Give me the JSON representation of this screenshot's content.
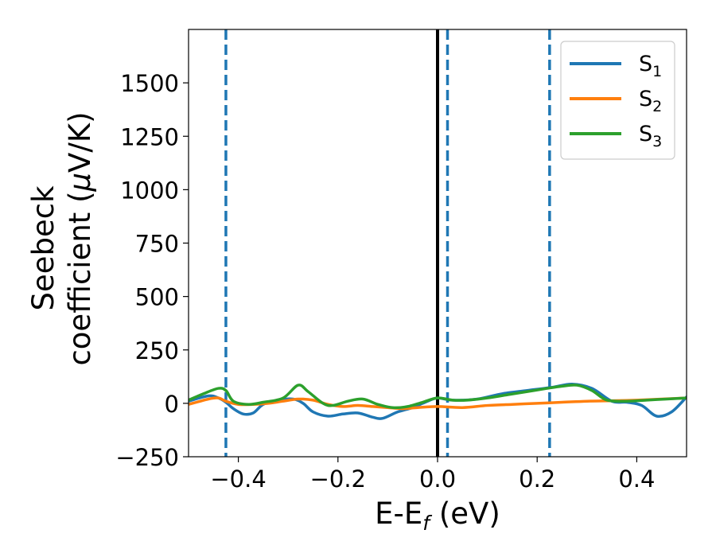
{
  "chart_data": {
    "type": "line",
    "title": "",
    "xlabel": {
      "main": "E-E",
      "sub": "f",
      "rest": " (eV)"
    },
    "ylabel": {
      "line1": "Seebeck",
      "line2_main": "coefficient  (",
      "mu": "μ",
      "line2_rest": "V/K)"
    },
    "xlim": [
      -0.5,
      0.5
    ],
    "ylim": [
      -250,
      1750
    ],
    "xticks": [
      -0.4,
      -0.2,
      0.0,
      0.2,
      0.4
    ],
    "xtick_labels": [
      "−0.4",
      "−0.2",
      "0.0",
      "0.2",
      "0.4"
    ],
    "yticks": [
      -250,
      0,
      250,
      500,
      750,
      1000,
      1250,
      1500
    ],
    "ytick_labels": [
      "−250",
      "0",
      "250",
      "500",
      "750",
      "1000",
      "1250",
      "1500"
    ],
    "grid": false,
    "legend_position": "top-right",
    "vlines": [
      {
        "x": -0.425,
        "style": "dashed",
        "color": "#1f77b4"
      },
      {
        "x": 0.0,
        "style": "solid",
        "color": "#000000"
      },
      {
        "x": 0.02,
        "style": "dashed",
        "color": "#1f77b4"
      },
      {
        "x": 0.225,
        "style": "dashed",
        "color": "#1f77b4"
      }
    ],
    "series": [
      {
        "name": "S",
        "sub": "1",
        "color": "#1f77b4",
        "x": [
          -0.5,
          -0.46,
          -0.44,
          -0.425,
          -0.41,
          -0.39,
          -0.37,
          -0.35,
          -0.32,
          -0.29,
          -0.27,
          -0.25,
          -0.22,
          -0.19,
          -0.16,
          -0.13,
          -0.11,
          -0.08,
          -0.05,
          -0.02,
          0.0,
          0.03,
          0.08,
          0.13,
          0.18,
          0.23,
          0.27,
          0.31,
          0.35,
          0.38,
          0.41,
          0.44,
          0.47,
          0.5
        ],
        "y": [
          10,
          35,
          25,
          5,
          -25,
          -50,
          -45,
          -5,
          15,
          20,
          0,
          -40,
          -60,
          -50,
          -45,
          -65,
          -70,
          -40,
          -20,
          10,
          25,
          15,
          20,
          45,
          60,
          75,
          90,
          70,
          10,
          5,
          -10,
          -60,
          -40,
          30
        ]
      },
      {
        "name": "S",
        "sub": "2",
        "color": "#ff7f0e",
        "x": [
          -0.5,
          -0.46,
          -0.44,
          -0.425,
          -0.4,
          -0.37,
          -0.34,
          -0.31,
          -0.28,
          -0.25,
          -0.22,
          -0.19,
          -0.16,
          -0.13,
          -0.1,
          -0.07,
          -0.04,
          0.0,
          0.05,
          0.1,
          0.15,
          0.2,
          0.25,
          0.3,
          0.35,
          0.4,
          0.45,
          0.5
        ],
        "y": [
          -5,
          20,
          25,
          10,
          -5,
          -5,
          0,
          10,
          20,
          15,
          -5,
          -15,
          -10,
          -15,
          -20,
          -25,
          -20,
          -15,
          -20,
          -10,
          -5,
          0,
          5,
          10,
          12,
          15,
          20,
          25
        ]
      },
      {
        "name": "S",
        "sub": "3",
        "color": "#2ca02c",
        "x": [
          -0.5,
          -0.47,
          -0.44,
          -0.425,
          -0.41,
          -0.38,
          -0.35,
          -0.31,
          -0.28,
          -0.26,
          -0.23,
          -0.21,
          -0.18,
          -0.15,
          -0.12,
          -0.09,
          -0.06,
          -0.03,
          0.0,
          0.03,
          0.06,
          0.1,
          0.14,
          0.18,
          0.22,
          0.25,
          0.28,
          0.31,
          0.34,
          0.38,
          0.42,
          0.46,
          0.5
        ],
        "y": [
          15,
          45,
          70,
          60,
          10,
          -5,
          5,
          25,
          85,
          55,
          0,
          -10,
          10,
          20,
          -5,
          -20,
          -15,
          5,
          25,
          15,
          15,
          25,
          40,
          55,
          70,
          80,
          85,
          60,
          15,
          10,
          15,
          20,
          25
        ]
      }
    ]
  }
}
